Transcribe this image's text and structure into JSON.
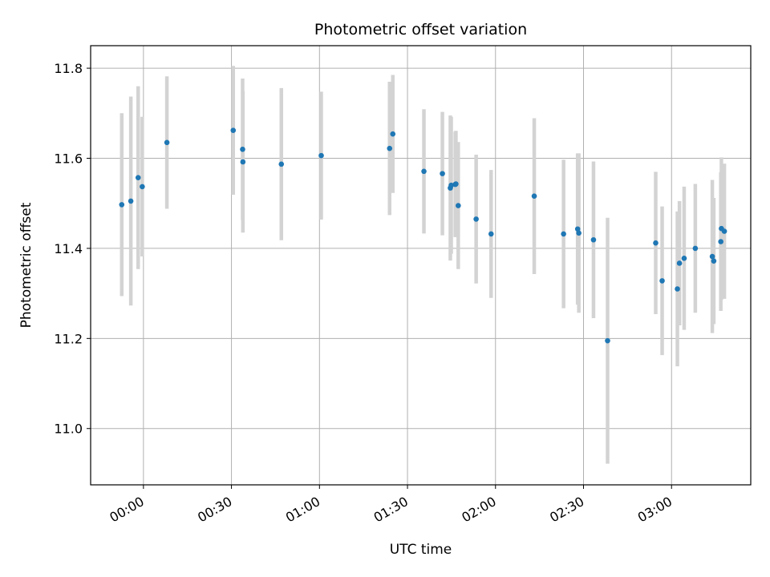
{
  "chart_data": {
    "type": "scatter",
    "title": "Photometric offset variation",
    "xlabel": "UTC time",
    "ylabel": "Photometric offset",
    "grid": true,
    "xlim": [
      -18,
      207
    ],
    "ylim": [
      10.875,
      11.85
    ],
    "x_ticks": [
      {
        "value": 0,
        "label": "00:00"
      },
      {
        "value": 30,
        "label": "00:30"
      },
      {
        "value": 60,
        "label": "01:00"
      },
      {
        "value": 90,
        "label": "01:30"
      },
      {
        "value": 120,
        "label": "02:00"
      },
      {
        "value": 150,
        "label": "02:30"
      },
      {
        "value": 180,
        "label": "03:00"
      }
    ],
    "y_ticks": [
      {
        "value": 11.0,
        "label": "11.0"
      },
      {
        "value": 11.2,
        "label": "11.2"
      },
      {
        "value": 11.4,
        "label": "11.4"
      },
      {
        "value": 11.6,
        "label": "11.6"
      },
      {
        "value": 11.8,
        "label": "11.8"
      }
    ],
    "series": [
      {
        "name": "offset",
        "marker_color": "#1f77b4",
        "errorbar_color": "#d3d3d3",
        "points": [
          {
            "x": -7.4,
            "y": 11.497,
            "err": 0.203
          },
          {
            "x": -4.3,
            "y": 11.505,
            "err": 0.232
          },
          {
            "x": -1.8,
            "y": 11.557,
            "err": 0.203
          },
          {
            "x": -0.4,
            "y": 11.537,
            "err": 0.155
          },
          {
            "x": 8.0,
            "y": 11.635,
            "err": 0.147
          },
          {
            "x": 30.6,
            "y": 11.662,
            "err": 0.143
          },
          {
            "x": 33.8,
            "y": 11.62,
            "err": 0.157
          },
          {
            "x": 33.9,
            "y": 11.592,
            "err": 0.157
          },
          {
            "x": 47.0,
            "y": 11.587,
            "err": 0.169
          },
          {
            "x": 60.6,
            "y": 11.606,
            "err": 0.142
          },
          {
            "x": 83.9,
            "y": 11.622,
            "err": 0.148
          },
          {
            "x": 85.0,
            "y": 11.654,
            "err": 0.131
          },
          {
            "x": 95.6,
            "y": 11.571,
            "err": 0.138
          },
          {
            "x": 101.9,
            "y": 11.566,
            "err": 0.137
          },
          {
            "x": 104.6,
            "y": 11.534,
            "err": 0.161
          },
          {
            "x": 104.9,
            "y": 11.54,
            "err": 0.152
          },
          {
            "x": 106.3,
            "y": 11.542,
            "err": 0.117
          },
          {
            "x": 106.5,
            "y": 11.543,
            "err": 0.118
          },
          {
            "x": 107.3,
            "y": 11.495,
            "err": 0.141
          },
          {
            "x": 113.4,
            "y": 11.465,
            "err": 0.143
          },
          {
            "x": 118.5,
            "y": 11.432,
            "err": 0.142
          },
          {
            "x": 133.2,
            "y": 11.516,
            "err": 0.173
          },
          {
            "x": 143.2,
            "y": 11.432,
            "err": 0.165
          },
          {
            "x": 148.0,
            "y": 11.443,
            "err": 0.168
          },
          {
            "x": 148.4,
            "y": 11.434,
            "err": 0.177
          },
          {
            "x": 153.4,
            "y": 11.419,
            "err": 0.174
          },
          {
            "x": 158.2,
            "y": 11.195,
            "err": 0.273
          },
          {
            "x": 174.6,
            "y": 11.412,
            "err": 0.158
          },
          {
            "x": 176.8,
            "y": 11.328,
            "err": 0.165
          },
          {
            "x": 182.0,
            "y": 11.31,
            "err": 0.172
          },
          {
            "x": 182.7,
            "y": 11.367,
            "err": 0.138
          },
          {
            "x": 184.3,
            "y": 11.378,
            "err": 0.159
          },
          {
            "x": 188.1,
            "y": 11.4,
            "err": 0.143
          },
          {
            "x": 193.9,
            "y": 11.382,
            "err": 0.17
          },
          {
            "x": 194.4,
            "y": 11.372,
            "err": 0.14
          },
          {
            "x": 196.8,
            "y": 11.415,
            "err": 0.154
          },
          {
            "x": 197.0,
            "y": 11.444,
            "err": 0.158
          },
          {
            "x": 198.0,
            "y": 11.438,
            "err": 0.15
          }
        ]
      }
    ]
  }
}
